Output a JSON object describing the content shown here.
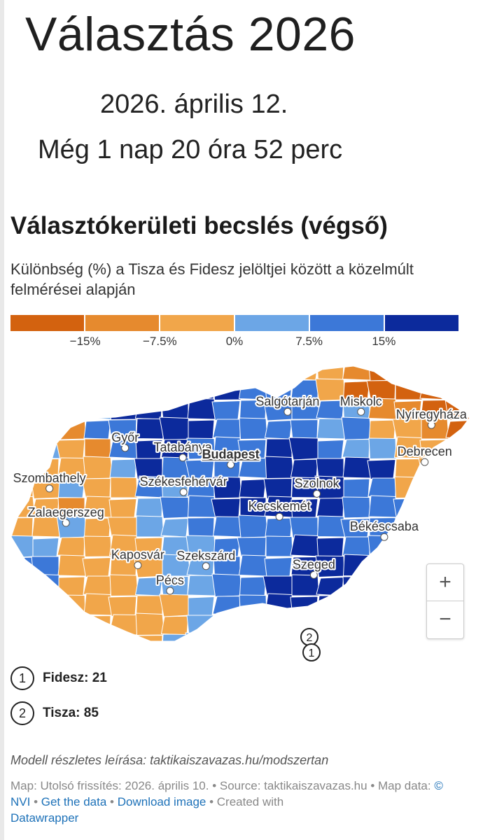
{
  "header": {
    "title": "Választás 2026",
    "date": "2026. április 12.",
    "countdown": "Még 1 nap 20 óra 52 perc"
  },
  "chart": {
    "title": "Választókerületi becslés (végső)",
    "subtitle": "Különbség (%) a Tisza és Fidesz jelöltjei között a közelmúlt felmérései alapján"
  },
  "legend": {
    "colors": [
      "#d3620f",
      "#e68a2e",
      "#f1a64a",
      "#6ca6e6",
      "#3c78d8",
      "#0c2a9c"
    ],
    "labels": [
      "−15%",
      "−7.5%",
      "0%",
      "7.5%",
      "15%"
    ]
  },
  "map": {
    "cities": [
      {
        "name": "Salgótarján",
        "lon": 19.8,
        "lat": 48.1,
        "capital": false
      },
      {
        "name": "Miskolc",
        "lon": 20.78,
        "lat": 48.1,
        "capital": false
      },
      {
        "name": "Győr",
        "lon": 17.63,
        "lat": 47.69,
        "capital": false
      },
      {
        "name": "Tatabánya",
        "lon": 18.4,
        "lat": 47.58,
        "capital": false
      },
      {
        "name": "Nyíregyháza",
        "lon": 21.72,
        "lat": 47.95,
        "capital": false
      },
      {
        "name": "Szombathely",
        "lon": 16.62,
        "lat": 47.23,
        "capital": false
      },
      {
        "name": "Budapest",
        "lon": 19.04,
        "lat": 47.5,
        "capital": true
      },
      {
        "name": "Szolnok",
        "lon": 20.19,
        "lat": 47.17,
        "capital": false
      },
      {
        "name": "Debrecen",
        "lon": 21.63,
        "lat": 47.53,
        "capital": false
      },
      {
        "name": "Székesfehérvár",
        "lon": 18.41,
        "lat": 47.19,
        "capital": false
      },
      {
        "name": "Zalaegerszeg",
        "lon": 16.84,
        "lat": 46.84,
        "capital": false
      },
      {
        "name": "Kecskemét",
        "lon": 19.69,
        "lat": 46.91,
        "capital": false
      },
      {
        "name": "Szekszárd",
        "lon": 18.71,
        "lat": 46.35,
        "capital": false
      },
      {
        "name": "Békéscsaba",
        "lon": 21.09,
        "lat": 46.68,
        "capital": false
      },
      {
        "name": "Szeged",
        "lon": 20.15,
        "lat": 46.25,
        "capital": false
      },
      {
        "name": "Kaposvár",
        "lon": 17.8,
        "lat": 46.36,
        "capital": false
      },
      {
        "name": "Pécs",
        "lon": 18.23,
        "lat": 46.07,
        "capital": false
      }
    ],
    "zoom_in": "+",
    "zoom_out": "−",
    "marker_1": "1",
    "marker_2": "2"
  },
  "marker_legend": [
    {
      "num": "1",
      "label": "Fidesz: 21"
    },
    {
      "num": "2",
      "label": "Tisza: 85"
    }
  ],
  "footer": {
    "note": "Modell részletes leírása: taktikaiszavazas.hu/modszertan",
    "map_updated": "Map: Utolsó frissítés: 2026. április 10.",
    "source": "Source: taktikaiszavazas.hu",
    "map_data_prefix": "Map data:",
    "map_data_link": "© NVI",
    "get_data": "Get the data",
    "download_image": "Download image",
    "created_with": "Created with",
    "datawrapper": "Datawrapper"
  }
}
